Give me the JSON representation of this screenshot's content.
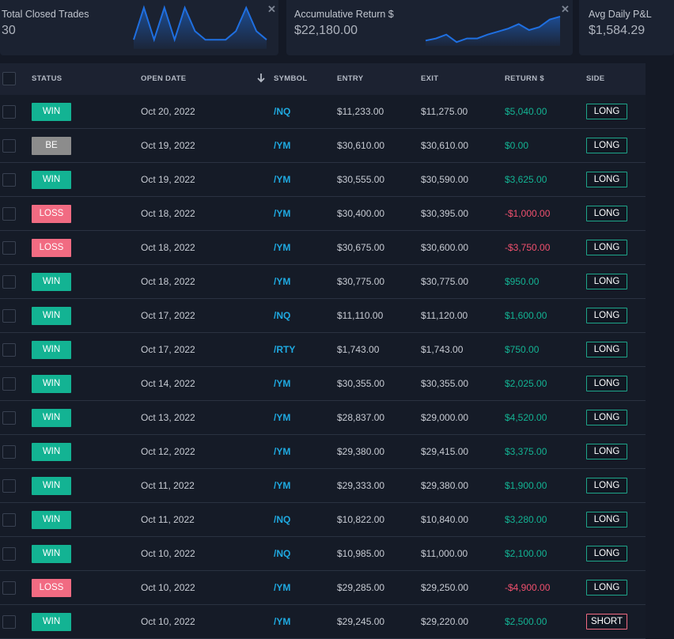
{
  "stats": [
    {
      "label": "Total Closed Trades",
      "value": "30",
      "spark": [
        0.2,
        0.95,
        0.2,
        0.95,
        0.2,
        0.95,
        0.4,
        0.2,
        0.2,
        0.2,
        0.4,
        0.95,
        0.4,
        0.2
      ]
    },
    {
      "label": "Accumulative Return $",
      "value": "$22,180.00",
      "spark": [
        0.15,
        0.22,
        0.35,
        0.1,
        0.22,
        0.22,
        0.35,
        0.45,
        0.55,
        0.7,
        0.5,
        0.6,
        0.85,
        0.95
      ]
    },
    {
      "label": "Avg Daily P&L",
      "value": "$1,584.29"
    }
  ],
  "colors": {
    "win": "#13b393",
    "loss": "#f16b82",
    "be": "#8c8c8c",
    "symbol": "#1fa9e0",
    "spark": "#1f6fe0"
  },
  "columns": {
    "status": "STATUS",
    "open_date": "OPEN DATE",
    "symbol": "SYMBOL",
    "entry": "ENTRY",
    "exit": "EXIT",
    "return": "RETURN $",
    "side": "SIDE"
  },
  "rows": [
    {
      "status": "WIN",
      "kind": "win",
      "date": "Oct 20, 2022",
      "symbol": "/NQ",
      "entry": "$11,233.00",
      "exit": "$11,275.00",
      "ret": "$5,040.00",
      "sign": "pos",
      "side": "LONG"
    },
    {
      "status": "BE",
      "kind": "be",
      "date": "Oct 19, 2022",
      "symbol": "/YM",
      "entry": "$30,610.00",
      "exit": "$30,610.00",
      "ret": "$0.00",
      "sign": "zero",
      "side": "LONG"
    },
    {
      "status": "WIN",
      "kind": "win",
      "date": "Oct 19, 2022",
      "symbol": "/YM",
      "entry": "$30,555.00",
      "exit": "$30,590.00",
      "ret": "$3,625.00",
      "sign": "pos",
      "side": "LONG"
    },
    {
      "status": "LOSS",
      "kind": "loss",
      "date": "Oct 18, 2022",
      "symbol": "/YM",
      "entry": "$30,400.00",
      "exit": "$30,395.00",
      "ret": "-$1,000.00",
      "sign": "neg",
      "side": "LONG"
    },
    {
      "status": "LOSS",
      "kind": "loss",
      "date": "Oct 18, 2022",
      "symbol": "/YM",
      "entry": "$30,675.00",
      "exit": "$30,600.00",
      "ret": "-$3,750.00",
      "sign": "neg",
      "side": "LONG"
    },
    {
      "status": "WIN",
      "kind": "win",
      "date": "Oct 18, 2022",
      "symbol": "/YM",
      "entry": "$30,775.00",
      "exit": "$30,775.00",
      "ret": "$950.00",
      "sign": "pos",
      "side": "LONG"
    },
    {
      "status": "WIN",
      "kind": "win",
      "date": "Oct 17, 2022",
      "symbol": "/NQ",
      "entry": "$11,110.00",
      "exit": "$11,120.00",
      "ret": "$1,600.00",
      "sign": "pos",
      "side": "LONG"
    },
    {
      "status": "WIN",
      "kind": "win",
      "date": "Oct 17, 2022",
      "symbol": "/RTY",
      "entry": "$1,743.00",
      "exit": "$1,743.00",
      "ret": "$750.00",
      "sign": "pos",
      "side": "LONG"
    },
    {
      "status": "WIN",
      "kind": "win",
      "date": "Oct 14, 2022",
      "symbol": "/YM",
      "entry": "$30,355.00",
      "exit": "$30,355.00",
      "ret": "$2,025.00",
      "sign": "pos",
      "side": "LONG"
    },
    {
      "status": "WIN",
      "kind": "win",
      "date": "Oct 13, 2022",
      "symbol": "/YM",
      "entry": "$28,837.00",
      "exit": "$29,000.00",
      "ret": "$4,520.00",
      "sign": "pos",
      "side": "LONG"
    },
    {
      "status": "WIN",
      "kind": "win",
      "date": "Oct 12, 2022",
      "symbol": "/YM",
      "entry": "$29,380.00",
      "exit": "$29,415.00",
      "ret": "$3,375.00",
      "sign": "pos",
      "side": "LONG"
    },
    {
      "status": "WIN",
      "kind": "win",
      "date": "Oct 11, 2022",
      "symbol": "/YM",
      "entry": "$29,333.00",
      "exit": "$29,380.00",
      "ret": "$1,900.00",
      "sign": "pos",
      "side": "LONG"
    },
    {
      "status": "WIN",
      "kind": "win",
      "date": "Oct 11, 2022",
      "symbol": "/NQ",
      "entry": "$10,822.00",
      "exit": "$10,840.00",
      "ret": "$3,280.00",
      "sign": "pos",
      "side": "LONG"
    },
    {
      "status": "WIN",
      "kind": "win",
      "date": "Oct 10, 2022",
      "symbol": "/NQ",
      "entry": "$10,985.00",
      "exit": "$11,000.00",
      "ret": "$2,100.00",
      "sign": "pos",
      "side": "LONG"
    },
    {
      "status": "LOSS",
      "kind": "loss",
      "date": "Oct 10, 2022",
      "symbol": "/YM",
      "entry": "$29,285.00",
      "exit": "$29,250.00",
      "ret": "-$4,900.00",
      "sign": "neg",
      "side": "LONG"
    },
    {
      "status": "WIN",
      "kind": "win",
      "date": "Oct 10, 2022",
      "symbol": "/YM",
      "entry": "$29,245.00",
      "exit": "$29,220.00",
      "ret": "$2,500.00",
      "sign": "pos",
      "side": "SHORT"
    }
  ]
}
